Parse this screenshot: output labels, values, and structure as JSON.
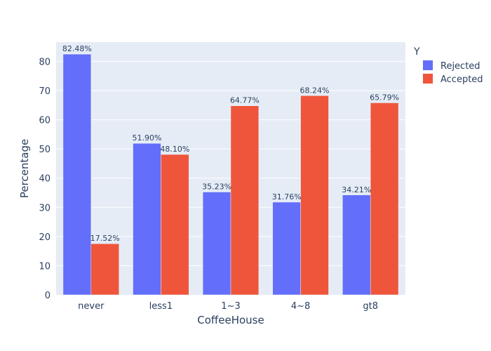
{
  "chart_data": {
    "type": "bar",
    "barmode": "group",
    "categories": [
      "never",
      "less1",
      "1~3",
      "4~8",
      "gt8"
    ],
    "series": [
      {
        "name": "Rejected",
        "values": [
          82.48,
          51.9,
          35.23,
          31.76,
          34.21
        ],
        "labels": [
          "82.48%",
          "51.90%",
          "35.23%",
          "31.76%",
          "34.21%"
        ],
        "color": "#636efa"
      },
      {
        "name": "Accepted",
        "values": [
          17.52,
          48.1,
          64.77,
          68.24,
          65.79
        ],
        "labels": [
          "17.52%",
          "48.10%",
          "64.77%",
          "68.24%",
          "65.79%"
        ],
        "color": "#ef553b"
      }
    ],
    "xlabel": "CoffeeHouse",
    "ylabel": "Percentage",
    "ylim": [
      0,
      86.6
    ],
    "yticks": [
      0,
      10,
      20,
      30,
      40,
      50,
      60,
      70,
      80
    ],
    "grid": true,
    "plot_bg": "#e5ecf6",
    "legend": {
      "title": "Y",
      "placement": "top-right-outside"
    }
  }
}
